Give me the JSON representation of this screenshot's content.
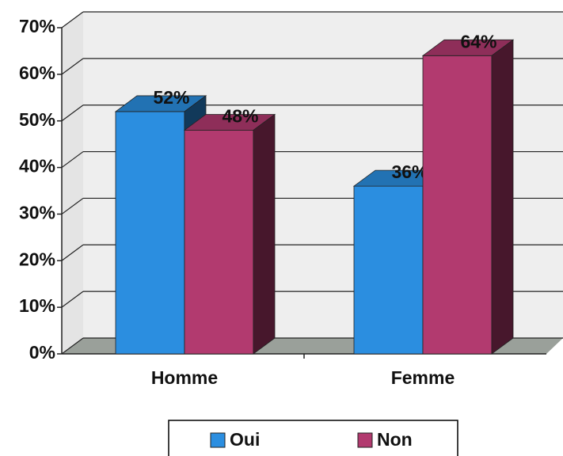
{
  "chart_data": {
    "type": "bar3d",
    "categories": [
      "Homme",
      "Femme"
    ],
    "series": [
      {
        "name": "Oui",
        "color": "#2b8ee0",
        "values": [
          52,
          36
        ],
        "value_labels": [
          "52%",
          "36%"
        ]
      },
      {
        "name": "Non",
        "color": "#b23a6f",
        "values": [
          48,
          64
        ],
        "value_labels": [
          "48%",
          "64%"
        ]
      }
    ],
    "ylim": [
      0,
      70
    ],
    "yticks": [
      {
        "value": 0,
        "label": "0%"
      },
      {
        "value": 10,
        "label": "10%"
      },
      {
        "value": 20,
        "label": "20%"
      },
      {
        "value": 30,
        "label": "30%"
      },
      {
        "value": 40,
        "label": "40%"
      },
      {
        "value": 50,
        "label": "50%"
      },
      {
        "value": 60,
        "label": "60%"
      },
      {
        "value": 70,
        "label": "70%"
      }
    ],
    "grid": true,
    "legend": "bottom"
  }
}
